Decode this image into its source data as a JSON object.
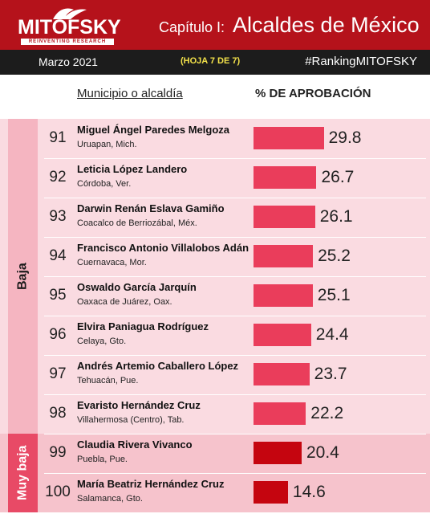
{
  "header": {
    "logo_text": "MITOFSKY",
    "logo_sub": "REINVENTING RESEARCH",
    "chapter": "Capítulo I:",
    "title": "Alcaldes de México"
  },
  "subbar": {
    "date": "Marzo 2021",
    "sheet": "(HOJA 7 DE 7)",
    "hashtag": "#RankingMITOFSKY"
  },
  "columns": {
    "municipio": "Municipio o alcaldía",
    "aprobacion": "% DE APROBACIÓN"
  },
  "colors": {
    "header_red": "#b5121b",
    "baja_bar": "#ea3d5b",
    "muy_baja_bar": "#c5050f",
    "baja_band": "#fadbe1",
    "muy_baja_band": "#f6c3cc"
  },
  "chart_data": {
    "type": "bar",
    "title": "Alcaldes de México",
    "xlabel": "",
    "ylabel": "% DE APROBACIÓN",
    "ylim": [
      0,
      100
    ],
    "groups": [
      {
        "label": "Baja",
        "ranks": [
          91,
          92,
          93,
          94,
          95,
          96,
          97,
          98
        ]
      },
      {
        "label": "Muy baja",
        "ranks": [
          99,
          100
        ]
      }
    ],
    "rows": [
      {
        "rank": "91",
        "name": "Miguel Ángel Paredes Melgoza",
        "place": "Uruapan, Mich.",
        "value": 29.8,
        "group": "Baja"
      },
      {
        "rank": "92",
        "name": "Leticia López Landero",
        "place": "Córdoba, Ver.",
        "value": 26.7,
        "group": "Baja"
      },
      {
        "rank": "93",
        "name": "Darwin Renán Eslava Gamiño",
        "place": "Coacalco de Berriozábal, Méx.",
        "value": 26.1,
        "group": "Baja"
      },
      {
        "rank": "94",
        "name": "Francisco Antonio Villalobos Adán",
        "place": "Cuernavaca, Mor.",
        "value": 25.2,
        "group": "Baja"
      },
      {
        "rank": "95",
        "name": "Oswaldo García Jarquín",
        "place": "Oaxaca de Juárez, Oax.",
        "value": 25.1,
        "group": "Baja"
      },
      {
        "rank": "96",
        "name": "Elvira Paniagua Rodríguez",
        "place": "Celaya, Gto.",
        "value": 24.4,
        "group": "Baja"
      },
      {
        "rank": "97",
        "name": "Andrés Artemio Caballero López",
        "place": "Tehuacán, Pue.",
        "value": 23.7,
        "group": "Baja"
      },
      {
        "rank": "98",
        "name": "Evaristo Hernández Cruz",
        "place": "Villahermosa (Centro), Tab.",
        "value": 22.2,
        "group": "Baja"
      },
      {
        "rank": "99",
        "name": "Claudia Rivera Vivanco",
        "place": "Puebla, Pue.",
        "value": 20.4,
        "group": "Muy baja"
      },
      {
        "rank": "100",
        "name": "María Beatriz Hernández Cruz",
        "place": "Salamanca, Gto.",
        "value": 14.6,
        "group": "Muy baja"
      }
    ]
  }
}
